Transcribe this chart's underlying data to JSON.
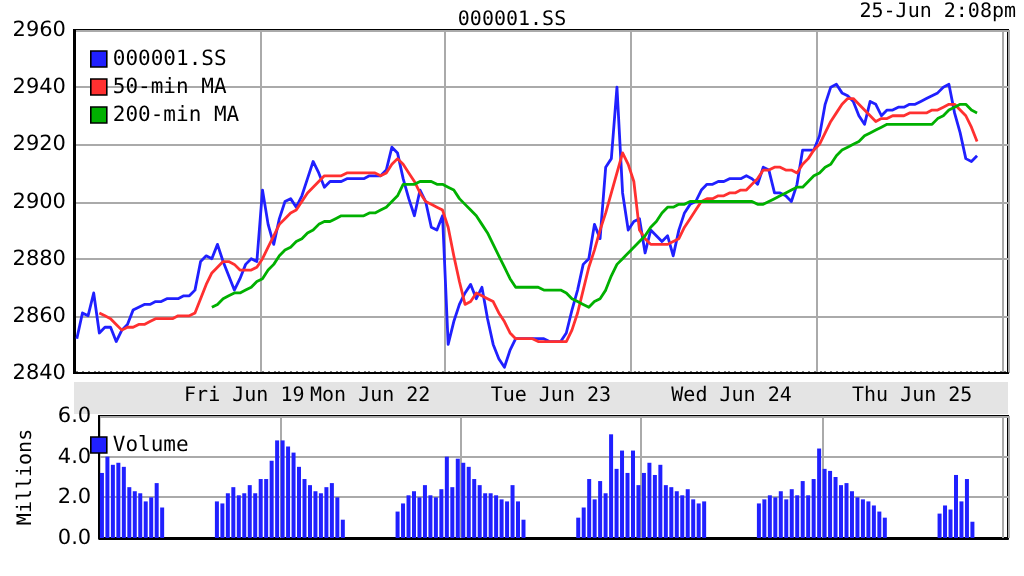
{
  "chart_data": [
    {
      "type": "line",
      "title": "000001.SS",
      "annotations": [
        "25-Jun 2:08pm"
      ],
      "categories": [
        null,
        null,
        null,
        null,
        null,
        null,
        null,
        null,
        null,
        null,
        null,
        null,
        null,
        null,
        null,
        null,
        null,
        null,
        null,
        null,
        null,
        null,
        null,
        null,
        null,
        null,
        null,
        null,
        null,
        null,
        null,
        null,
        null,
        null,
        null,
        null,
        null,
        null,
        null,
        null,
        null,
        null,
        null,
        null,
        null,
        null,
        null,
        null,
        null,
        null,
        null,
        null,
        null,
        null,
        null,
        null,
        null,
        null,
        null,
        null,
        null,
        null,
        null,
        null,
        null,
        null,
        null,
        null,
        null,
        null,
        null,
        null,
        null,
        null,
        null,
        null,
        null,
        null,
        null,
        null,
        null,
        null,
        null,
        null,
        null,
        null,
        null,
        null,
        null,
        null,
        null,
        null,
        null,
        null,
        null,
        null,
        null,
        null,
        null,
        null,
        null,
        null,
        null,
        null,
        null,
        null,
        null,
        null,
        null,
        null,
        null,
        null,
        null,
        null,
        null,
        null,
        null,
        null,
        null,
        null,
        null,
        null,
        null,
        null,
        null,
        null,
        null,
        null,
        null,
        null,
        null,
        null,
        null,
        null,
        null,
        null,
        null,
        null,
        null,
        null,
        null,
        null,
        null,
        null,
        null,
        null,
        null,
        null,
        null,
        null,
        null,
        null,
        null,
        null,
        null,
        null,
        null,
        null,
        null,
        null,
        null,
        null,
        null,
        null,
        null,
        null
      ],
      "ylim": [
        2840,
        2960
      ],
      "yticks": [
        2840,
        2860,
        2880,
        2900,
        2920,
        2940,
        2960
      ],
      "grid": true,
      "legend": "top left",
      "tick_labels": "y",
      "series": [
        {
          "name": "000001.SS",
          "color": "#2020ff",
          "values": [
            2852,
            2861,
            2860,
            2868,
            2854,
            2856,
            2856,
            2851,
            2855,
            2857,
            2862,
            2863,
            2864,
            2864,
            2865,
            2865,
            2866,
            2866,
            2866,
            2867,
            2867,
            2869,
            2879,
            2881,
            2880,
            2885,
            2879,
            2874,
            2869,
            2873,
            2878,
            2880,
            2879,
            2904,
            2892,
            2885,
            2894,
            2900,
            2901,
            2898,
            2902,
            2908,
            2914,
            2910,
            2905,
            2907,
            2907,
            2907,
            2908,
            2908,
            2908,
            2908,
            2909,
            2909,
            2909,
            2911,
            2919,
            2917,
            2908,
            2901,
            2895,
            2904,
            2900,
            2891,
            2890,
            2895,
            2850,
            2858,
            2864,
            2868,
            2871,
            2866,
            2870,
            2859,
            2850,
            2845,
            2842,
            2848,
            2852,
            2852,
            2852,
            2852,
            2852,
            2852,
            2851,
            2851,
            2851,
            2854,
            2862,
            2869,
            2878,
            2880,
            2892,
            2887,
            2912,
            2915,
            2940,
            2903,
            2890,
            2893,
            2894,
            2882,
            2890,
            2888,
            2886,
            2888,
            2881,
            2890,
            2896,
            2899,
            2900,
            2904,
            2906,
            2906,
            2907,
            2907,
            2908,
            2908,
            2908,
            2909,
            2908,
            2906,
            2912,
            2911,
            2903,
            2903,
            2902,
            2900,
            2906,
            2918,
            2918,
            2918,
            2923,
            2934,
            2940,
            2941,
            2938,
            2937,
            2935,
            2930,
            2927,
            2935,
            2934,
            2930,
            2932,
            2932,
            2933,
            2933,
            2934,
            2934,
            2935,
            2936,
            2937,
            2938,
            2940,
            2941,
            2931,
            2924,
            2915,
            2914,
            2916,
            null,
            null,
            null,
            null,
            null
          ]
        },
        {
          "name": "50-min MA",
          "color": "#ff3030",
          "values": [
            null,
            null,
            null,
            null,
            2861,
            2860,
            2859,
            2857,
            2855,
            2856,
            2856,
            2857,
            2857,
            2858,
            2859,
            2859,
            2859,
            2859,
            2860,
            2860,
            2860,
            2861,
            2866,
            2871,
            2875,
            2877,
            2879,
            2879,
            2878,
            2876,
            2876,
            2876,
            2877,
            2880,
            2884,
            2888,
            2892,
            2894,
            2896,
            2897,
            2900,
            2903,
            2905,
            2907,
            2909,
            2909,
            2909,
            2909,
            2910,
            2910,
            2910,
            2910,
            2910,
            2910,
            2909,
            2910,
            2913,
            2915,
            2913,
            2910,
            2907,
            2903,
            2900,
            2899,
            2898,
            2897,
            2891,
            2881,
            2872,
            2864,
            2865,
            2868,
            2867,
            2866,
            2865,
            2861,
            2858,
            2854,
            2852,
            2852,
            2852,
            2852,
            2851,
            2851,
            2851,
            2851,
            2851,
            2851,
            2855,
            2861,
            2869,
            2877,
            2883,
            2890,
            2896,
            2903,
            2910,
            2917,
            2913,
            2907,
            2890,
            2887,
            2885,
            2885,
            2885,
            2885,
            2886,
            2887,
            2891,
            2894,
            2897,
            2900,
            2901,
            2901,
            2902,
            2902,
            2903,
            2903,
            2904,
            2904,
            2906,
            2908,
            2911,
            2911,
            2912,
            2912,
            2911,
            2911,
            2910,
            2913,
            2915,
            2918,
            2920,
            2924,
            2928,
            2931,
            2934,
            2936,
            2936,
            2934,
            2932,
            2930,
            2928,
            2929,
            2929,
            2930,
            2930,
            2930,
            2931,
            2931,
            2931,
            2931,
            2932,
            2932,
            2933,
            2934,
            2934,
            2932,
            2930,
            2926,
            2921,
            null,
            null,
            null,
            null,
            null
          ]
        },
        {
          "name": "200-min MA",
          "color": "#00b000",
          "values": [
            null,
            null,
            null,
            null,
            null,
            null,
            null,
            null,
            null,
            null,
            null,
            null,
            null,
            null,
            null,
            null,
            null,
            null,
            null,
            null,
            null,
            null,
            null,
            null,
            2863,
            2864,
            2866,
            2867,
            2868,
            2868,
            2869,
            2870,
            2872,
            2873,
            2876,
            2878,
            2881,
            2883,
            2884,
            2886,
            2887,
            2889,
            2890,
            2892,
            2893,
            2893,
            2894,
            2895,
            2895,
            2895,
            2895,
            2895,
            2896,
            2896,
            2897,
            2898,
            2900,
            2902,
            2906,
            2906,
            2906,
            2907,
            2907,
            2907,
            2906,
            2906,
            2905,
            2904,
            2901,
            2899,
            2897,
            2895,
            2892,
            2889,
            2885,
            2881,
            2877,
            2873,
            2870,
            2870,
            2870,
            2870,
            2870,
            2869,
            2869,
            2869,
            2869,
            2868,
            2866,
            2865,
            2864,
            2863,
            2865,
            2866,
            2869,
            2874,
            2878,
            2880,
            2882,
            2884,
            2886,
            2888,
            2891,
            2893,
            2896,
            2898,
            2898,
            2899,
            2899,
            2900,
            2900,
            2900,
            2900,
            2900,
            2900,
            2900,
            2900,
            2900,
            2900,
            2900,
            2900,
            2899,
            2899,
            2900,
            2901,
            2902,
            2903,
            2904,
            2905,
            2905,
            2907,
            2909,
            2910,
            2912,
            2913,
            2916,
            2918,
            2919,
            2920,
            2921,
            2923,
            2924,
            2925,
            2926,
            2927,
            2927,
            2927,
            2927,
            2927,
            2927,
            2927,
            2927,
            2927,
            2929,
            2930,
            2932,
            2933,
            2934,
            2934,
            2932,
            2931,
            null,
            null,
            null,
            null,
            null
          ]
        }
      ]
    },
    {
      "type": "bar",
      "ylabel": "Millions",
      "categories": [
        null,
        null,
        null,
        null,
        null,
        null,
        null,
        null,
        null,
        null,
        null,
        null,
        null,
        null,
        null,
        null,
        null,
        null,
        null,
        null,
        null,
        null,
        null,
        null,
        null,
        null,
        "Fri Jun 19",
        null,
        null,
        null,
        null,
        null,
        null,
        null,
        null,
        null,
        null,
        null,
        null,
        null,
        null,
        null,
        null,
        null,
        null,
        null,
        null,
        null,
        null,
        "Mon Jun 22",
        null,
        null,
        null,
        null,
        null,
        null,
        null,
        null,
        null,
        null,
        null,
        null,
        null,
        null,
        null,
        null,
        null,
        null,
        null,
        null,
        null,
        null,
        null,
        null,
        null,
        null,
        null,
        null,
        null,
        null,
        null,
        null,
        "Tue Jun 23",
        null,
        null,
        null,
        null,
        null,
        null,
        null,
        null,
        null,
        null,
        null,
        null,
        null,
        null,
        null,
        null,
        null,
        null,
        null,
        null,
        null,
        null,
        null,
        null,
        null,
        null,
        null,
        null,
        null,
        null,
        null,
        null,
        "Wed Jun 24",
        null,
        null,
        null,
        null,
        null,
        null,
        null,
        null,
        null,
        null,
        null,
        null,
        null,
        null,
        null,
        null,
        null,
        null,
        null,
        null,
        null,
        null,
        null,
        null,
        null,
        null,
        null,
        null,
        null,
        null,
        null,
        null,
        "Thu Jun 25",
        null,
        null,
        null,
        null,
        null,
        null,
        null,
        null,
        null,
        null,
        null,
        null,
        null,
        null,
        null,
        null,
        null
      ],
      "ylim": [
        0,
        6
      ],
      "yticks": [
        {
          "value": 0,
          "label": "0.0"
        },
        {
          "value": 2,
          "label": "2.0"
        },
        {
          "value": 4,
          "label": "4.0"
        },
        {
          "value": 6,
          "label": "6.0"
        }
      ],
      "grid": true,
      "legend": "top left",
      "series": [
        {
          "name": "Volume",
          "color": "#2020ff",
          "values": [
            3.2,
            4.0,
            3.6,
            3.7,
            3.5,
            2.5,
            2.3,
            2.2,
            1.8,
            2.0,
            2.7,
            1.5,
            null,
            null,
            null,
            null,
            null,
            null,
            null,
            null,
            null,
            1.8,
            1.7,
            2.2,
            2.5,
            2.1,
            2.2,
            2.6,
            2.2,
            2.9,
            2.9,
            3.8,
            4.8,
            4.8,
            4.5,
            4.2,
            3.5,
            2.9,
            2.6,
            2.3,
            2.2,
            2.5,
            2.7,
            2.0,
            0.9,
            null,
            null,
            null,
            null,
            null,
            null,
            null,
            null,
            null,
            1.3,
            1.7,
            2.1,
            2.3,
            2.0,
            2.6,
            2.1,
            2.0,
            2.4,
            4.0,
            2.5,
            3.9,
            3.7,
            3.5,
            2.9,
            2.6,
            2.2,
            2.2,
            2.1,
            1.9,
            1.8,
            2.6,
            1.8,
            0.9,
            null,
            null,
            null,
            null,
            null,
            null,
            null,
            null,
            null,
            1.0,
            1.5,
            2.9,
            1.9,
            2.8,
            2.2,
            5.1,
            3.4,
            4.3,
            3.2,
            4.3,
            2.6,
            3.2,
            3.7,
            3.1,
            3.6,
            2.6,
            2.5,
            2.3,
            2.1,
            2.4,
            1.9,
            1.7,
            1.8,
            null,
            null,
            null,
            null,
            null,
            null,
            null,
            null,
            null,
            1.7,
            1.9,
            2.1,
            2.0,
            2.3,
            1.9,
            2.4,
            2.1,
            2.8,
            2.1,
            2.9,
            4.4,
            3.4,
            3.3,
            3.0,
            2.6,
            2.7,
            2.3,
            2.0,
            1.9,
            1.8,
            1.6,
            1.3,
            1.0,
            null,
            null,
            null,
            null,
            null,
            null,
            null,
            null,
            null,
            1.2,
            1.6,
            1.4,
            3.1,
            1.8,
            2.9,
            0.8,
            null,
            null,
            null,
            null,
            null,
            null
          ]
        }
      ]
    }
  ]
}
